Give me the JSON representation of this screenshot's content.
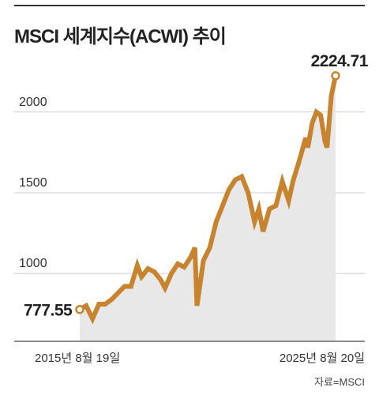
{
  "title": "MSCI 세계지수(ACWI) 추이",
  "source": "자료=MSCI",
  "chart_data": {
    "type": "area",
    "title": "MSCI 세계지수(ACWI) 추이",
    "xlabel": "",
    "ylabel": "",
    "ylim": [
      580,
      2400
    ],
    "yticks": [
      "2000",
      "1500",
      "1000"
    ],
    "xtick_labels": [
      "2015년 8월 19일",
      "2025년 8월 20일"
    ],
    "start_label": "777.55",
    "end_label": "2224.71",
    "grid": true,
    "colors": {
      "line": "#c8832e",
      "area": "#e8e8e8",
      "grid": "#cfcfcf",
      "axis": "#666666"
    },
    "x": [
      "2015-08",
      "2015-11",
      "2016-02",
      "2016-05",
      "2016-08",
      "2016-11",
      "2017-02",
      "2017-05",
      "2017-08",
      "2017-11",
      "2018-01",
      "2018-04",
      "2018-07",
      "2018-10",
      "2018-12",
      "2019-03",
      "2019-06",
      "2019-09",
      "2019-12",
      "2020-02",
      "2020-03",
      "2020-06",
      "2020-09",
      "2020-12",
      "2021-03",
      "2021-06",
      "2021-09",
      "2021-12",
      "2022-03",
      "2022-06",
      "2022-08",
      "2022-10",
      "2023-01",
      "2023-04",
      "2023-07",
      "2023-10",
      "2023-12",
      "2024-03",
      "2024-06",
      "2024-07",
      "2024-09",
      "2024-11",
      "2025-01",
      "2025-03",
      "2025-04",
      "2025-06",
      "2025-08"
    ],
    "values": [
      777,
      800,
      720,
      810,
      810,
      840,
      880,
      920,
      920,
      1050,
      980,
      1030,
      1010,
      960,
      910,
      1000,
      1060,
      1040,
      1100,
      1160,
      800,
      1080,
      1160,
      1320,
      1420,
      1520,
      1580,
      1600,
      1500,
      1320,
      1400,
      1260,
      1400,
      1420,
      1570,
      1450,
      1570,
      1700,
      1840,
      1780,
      1930,
      2000,
      1980,
      1820,
      1780,
      2100,
      2224.71
    ]
  }
}
